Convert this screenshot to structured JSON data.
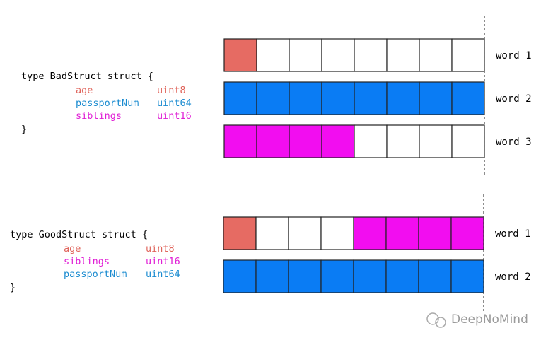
{
  "bad": {
    "open": "type BadStruct struct {",
    "fields": [
      {
        "name": "age",
        "type": "uint8"
      },
      {
        "name": "passportNum",
        "type": "uint64"
      },
      {
        "name": "siblings",
        "type": "uint16"
      }
    ],
    "close": "}",
    "words": [
      "word 1",
      "word 2",
      "word 3"
    ]
  },
  "good": {
    "open": "type GoodStruct struct {",
    "fields": [
      {
        "name": "age",
        "type": "uint8"
      },
      {
        "name": "siblings",
        "type": "uint16"
      },
      {
        "name": "passportNum",
        "type": "uint64"
      }
    ],
    "close": "}",
    "words": [
      "word 1",
      "word 2"
    ]
  },
  "watermark": "DeepNoMind"
}
